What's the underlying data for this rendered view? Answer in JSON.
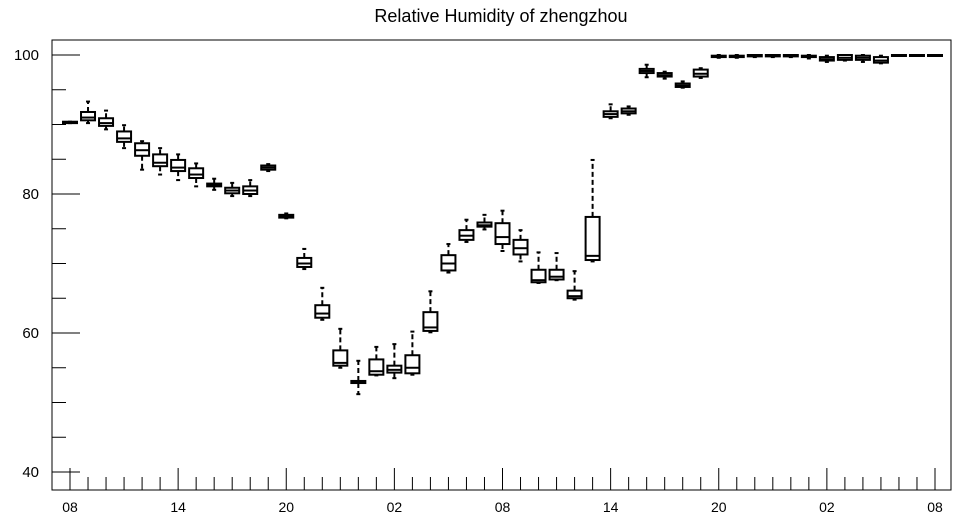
{
  "chart_data": {
    "type": "boxplot",
    "title": "Relative Humidity of zhengzhou",
    "xlabel": "",
    "ylabel": "",
    "ylim": [
      38.3,
      102
    ],
    "xlim": [
      -0.5,
      48.5
    ],
    "y_ticks": [
      40,
      60,
      80,
      100
    ],
    "y_tick_labels": [
      "40",
      "60",
      "80",
      "100"
    ],
    "x_ticks": [
      0,
      6,
      12,
      18,
      24,
      30,
      36,
      42,
      48
    ],
    "x_tick_labels": [
      "08",
      "14",
      "20",
      "02",
      "08",
      "14",
      "20",
      "02",
      "08"
    ],
    "grid": false,
    "series": [
      {
        "boxes": [
          {
            "x": 0,
            "q1": 90.2,
            "med": 90.3,
            "q3": 90.4,
            "min": 90.2,
            "max": 90.4
          },
          {
            "x": 1,
            "q1": 90.6,
            "med": 91.0,
            "q3": 91.8,
            "min": 90.2,
            "max": 93.3
          },
          {
            "x": 2,
            "q1": 89.8,
            "med": 90.2,
            "q3": 90.9,
            "min": 89.3,
            "max": 92.0
          },
          {
            "x": 3,
            "q1": 87.5,
            "med": 88.0,
            "q3": 89.0,
            "min": 86.6,
            "max": 89.9
          },
          {
            "x": 4,
            "q1": 85.5,
            "med": 86.3,
            "q3": 87.3,
            "min": 83.5,
            "max": 87.6
          },
          {
            "x": 5,
            "q1": 84.0,
            "med": 84.5,
            "q3": 85.7,
            "min": 82.8,
            "max": 86.6
          },
          {
            "x": 6,
            "q1": 83.3,
            "med": 83.8,
            "q3": 84.9,
            "min": 82.0,
            "max": 85.7
          },
          {
            "x": 7,
            "q1": 82.3,
            "med": 82.8,
            "q3": 83.7,
            "min": 81.1,
            "max": 84.4
          },
          {
            "x": 8,
            "q1": 81.1,
            "med": 81.3,
            "q3": 81.5,
            "min": 80.6,
            "max": 82.2
          },
          {
            "x": 9,
            "q1": 80.1,
            "med": 80.5,
            "q3": 80.9,
            "min": 79.7,
            "max": 81.6
          },
          {
            "x": 10,
            "q1": 80.0,
            "med": 80.5,
            "q3": 81.1,
            "min": 79.7,
            "max": 82.0
          },
          {
            "x": 11,
            "q1": 83.5,
            "med": 83.8,
            "q3": 84.1,
            "min": 83.3,
            "max": 84.3
          },
          {
            "x": 12,
            "q1": 76.6,
            "med": 76.8,
            "q3": 77.0,
            "min": 76.5,
            "max": 77.2
          },
          {
            "x": 13,
            "q1": 69.5,
            "med": 70.0,
            "q3": 70.8,
            "min": 69.2,
            "max": 72.1
          },
          {
            "x": 14,
            "q1": 62.2,
            "med": 62.8,
            "q3": 64.0,
            "min": 61.9,
            "max": 66.5
          },
          {
            "x": 15,
            "q1": 55.3,
            "med": 55.7,
            "q3": 57.5,
            "min": 55.0,
            "max": 60.6
          },
          {
            "x": 16,
            "q1": 52.8,
            "med": 52.9,
            "q3": 53.1,
            "min": 51.2,
            "max": 56.0
          },
          {
            "x": 17,
            "q1": 54.0,
            "med": 54.5,
            "q3": 56.2,
            "min": 53.9,
            "max": 58.0
          },
          {
            "x": 18,
            "q1": 54.3,
            "med": 54.7,
            "q3": 55.3,
            "min": 53.5,
            "max": 58.4
          },
          {
            "x": 19,
            "q1": 54.2,
            "med": 55.0,
            "q3": 56.8,
            "min": 54.0,
            "max": 60.2
          },
          {
            "x": 20,
            "q1": 60.3,
            "med": 60.8,
            "q3": 63.0,
            "min": 60.1,
            "max": 66.0
          },
          {
            "x": 21,
            "q1": 69.0,
            "med": 70.0,
            "q3": 71.2,
            "min": 68.7,
            "max": 72.8
          },
          {
            "x": 22,
            "q1": 73.4,
            "med": 74.0,
            "q3": 74.8,
            "min": 73.1,
            "max": 76.3
          },
          {
            "x": 23,
            "q1": 75.3,
            "med": 75.5,
            "q3": 75.9,
            "min": 74.9,
            "max": 77.0
          },
          {
            "x": 24,
            "q1": 72.8,
            "med": 73.8,
            "q3": 75.8,
            "min": 71.8,
            "max": 77.6
          },
          {
            "x": 25,
            "q1": 71.3,
            "med": 72.2,
            "q3": 73.4,
            "min": 70.3,
            "max": 74.8
          },
          {
            "x": 26,
            "q1": 67.3,
            "med": 67.6,
            "q3": 69.1,
            "min": 67.2,
            "max": 71.6
          },
          {
            "x": 27,
            "q1": 67.7,
            "med": 68.1,
            "q3": 69.1,
            "min": 67.6,
            "max": 71.5
          },
          {
            "x": 28,
            "q1": 65.0,
            "med": 65.3,
            "q3": 66.1,
            "min": 64.8,
            "max": 68.9
          },
          {
            "x": 29,
            "q1": 70.5,
            "med": 71.1,
            "q3": 76.7,
            "min": 70.3,
            "max": 84.9
          },
          {
            "x": 30,
            "q1": 91.1,
            "med": 91.5,
            "q3": 91.9,
            "min": 90.9,
            "max": 92.9
          },
          {
            "x": 31,
            "q1": 91.6,
            "med": 91.9,
            "q3": 92.3,
            "min": 91.4,
            "max": 92.6
          },
          {
            "x": 32,
            "q1": 97.4,
            "med": 97.7,
            "q3": 98.0,
            "min": 96.8,
            "max": 98.6
          },
          {
            "x": 33,
            "q1": 96.9,
            "med": 97.1,
            "q3": 97.4,
            "min": 96.6,
            "max": 97.6
          },
          {
            "x": 34,
            "q1": 95.4,
            "med": 95.6,
            "q3": 95.9,
            "min": 95.3,
            "max": 96.2
          },
          {
            "x": 35,
            "q1": 96.9,
            "med": 97.3,
            "q3": 97.9,
            "min": 96.7,
            "max": 98.1
          },
          {
            "x": 36,
            "q1": 99.7,
            "med": 99.8,
            "q3": 99.9,
            "min": 99.6,
            "max": 100.0
          },
          {
            "x": 37,
            "q1": 99.7,
            "med": 99.8,
            "q3": 99.9,
            "min": 99.6,
            "max": 100.0
          },
          {
            "x": 38,
            "q1": 99.8,
            "med": 99.9,
            "q3": 100.0,
            "min": 99.7,
            "max": 100.0
          },
          {
            "x": 39,
            "q1": 99.8,
            "med": 99.9,
            "q3": 100.0,
            "min": 99.7,
            "max": 100.0
          },
          {
            "x": 40,
            "q1": 99.8,
            "med": 99.9,
            "q3": 100.0,
            "min": 99.7,
            "max": 100.0
          },
          {
            "x": 41,
            "q1": 99.7,
            "med": 99.8,
            "q3": 99.9,
            "min": 99.5,
            "max": 100.0
          },
          {
            "x": 42,
            "q1": 99.2,
            "med": 99.4,
            "q3": 99.7,
            "min": 99.0,
            "max": 99.9
          },
          {
            "x": 43,
            "q1": 99.3,
            "med": 99.6,
            "q3": 100.0,
            "min": 99.2,
            "max": 100.0
          },
          {
            "x": 44,
            "q1": 99.3,
            "med": 99.6,
            "q3": 99.9,
            "min": 99.0,
            "max": 100.0
          },
          {
            "x": 45,
            "q1": 98.9,
            "med": 99.2,
            "q3": 99.7,
            "min": 98.8,
            "max": 99.9
          },
          {
            "x": 46,
            "q1": 99.9,
            "med": 100.0,
            "q3": 100.0,
            "min": 99.9,
            "max": 100.0
          },
          {
            "x": 47,
            "q1": 99.9,
            "med": 100.0,
            "q3": 100.0,
            "min": 99.9,
            "max": 100.0
          },
          {
            "x": 48,
            "q1": 99.9,
            "med": 100.0,
            "q3": 100.0,
            "min": 99.9,
            "max": 100.0
          }
        ]
      }
    ]
  }
}
